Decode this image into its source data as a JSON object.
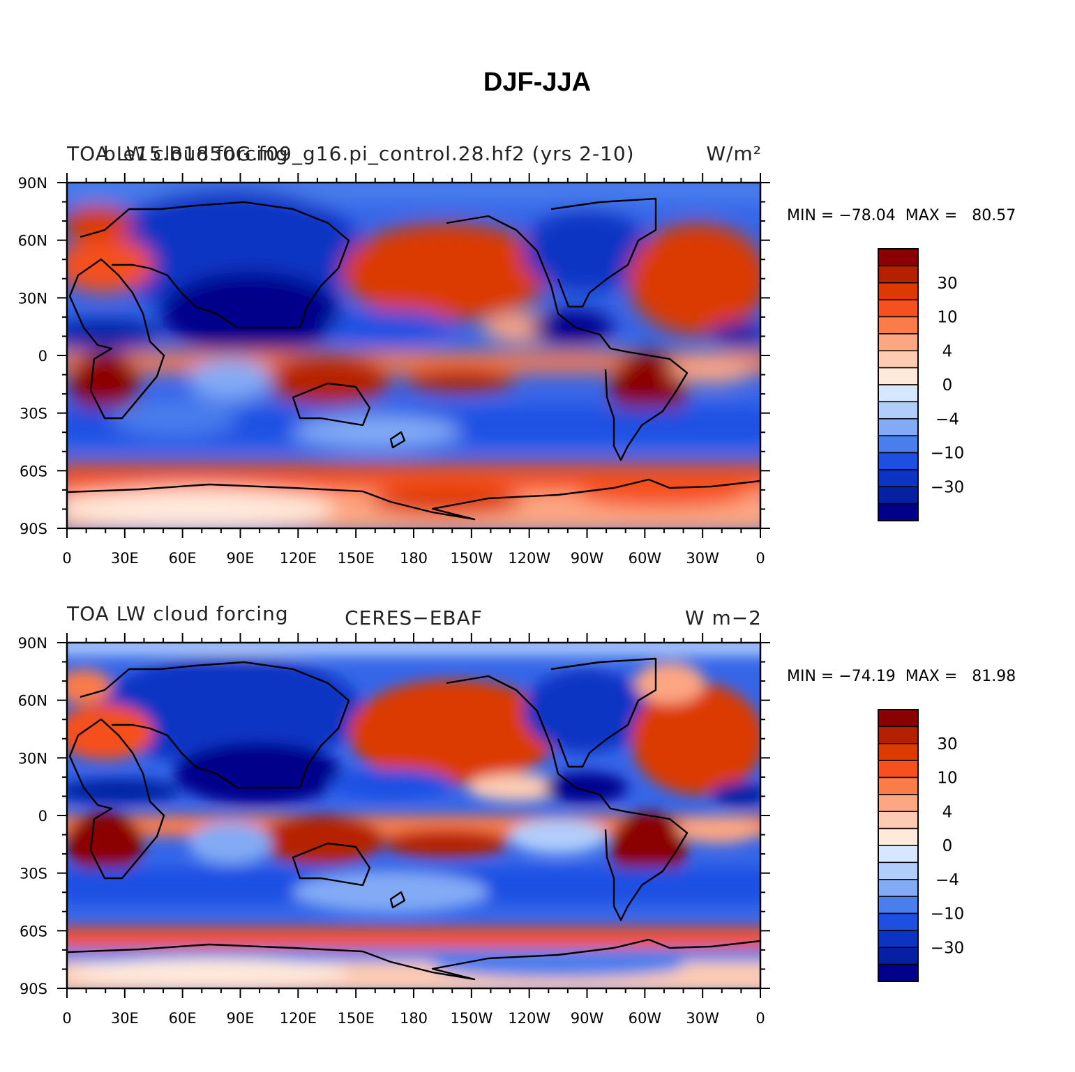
{
  "figure_title": "DJF-JJA",
  "panels": [
    {
      "left_title": "TOA LW cloud forcing",
      "center_title": "b.e15.B1850G.f09_g16.pi_control.28.hf2 (yrs 2-10)",
      "right_title": "W/m²",
      "min_max": "MIN = −78.04  MAX =   80.57"
    },
    {
      "left_title": "TOA LW cloud forcing",
      "center_title": "CERES−EBAF",
      "right_title": "W m−2",
      "min_max": "MIN = −74.19  MAX =   81.98"
    }
  ],
  "axes": {
    "lat_ticks": [
      "90N",
      "60N",
      "30N",
      "0",
      "30S",
      "60S",
      "90S"
    ],
    "lon_ticks": [
      "0",
      "30E",
      "60E",
      "90E",
      "120E",
      "150E",
      "180",
      "150W",
      "120W",
      "90W",
      "60W",
      "30W",
      "0"
    ]
  },
  "colorbar": {
    "labels": [
      "30",
      "10",
      "4",
      "0",
      "−4",
      "−10",
      "−30"
    ],
    "colors": [
      "#8b0000",
      "#b52000",
      "#dc3a00",
      "#f5501e",
      "#fb7c49",
      "#fca682",
      "#fdcbb2",
      "#ffe9da",
      "#d6e8ff",
      "#b0cdfb",
      "#82aaf5",
      "#4a7eed",
      "#1d4fe3",
      "#0b34c4",
      "#0620a3",
      "#00008b"
    ]
  },
  "chart_data": [
    {
      "type": "heatmap",
      "title": "TOA LW cloud forcing — b.e15.B1850G.f09_g16.pi_control.28.hf2 (yrs 2-10)",
      "units": "W/m²",
      "xlabel": "",
      "ylabel": "",
      "xlim": [
        0,
        360
      ],
      "ylim": [
        -90,
        90
      ],
      "min": -78.04,
      "max": 80.57,
      "contour_levels": [
        -40,
        -30,
        -20,
        -10,
        -6,
        -4,
        -2,
        0,
        2,
        4,
        6,
        10,
        20,
        30,
        40
      ]
    },
    {
      "type": "heatmap",
      "title": "TOA LW cloud forcing — CERES−EBAF",
      "units": "W m−2",
      "xlabel": "",
      "ylabel": "",
      "xlim": [
        0,
        360
      ],
      "ylim": [
        -90,
        90
      ],
      "min": -74.19,
      "max": 81.98,
      "contour_levels": [
        -40,
        -30,
        -20,
        -10,
        -6,
        -4,
        -2,
        0,
        2,
        4,
        6,
        10,
        20,
        30,
        40
      ]
    }
  ]
}
